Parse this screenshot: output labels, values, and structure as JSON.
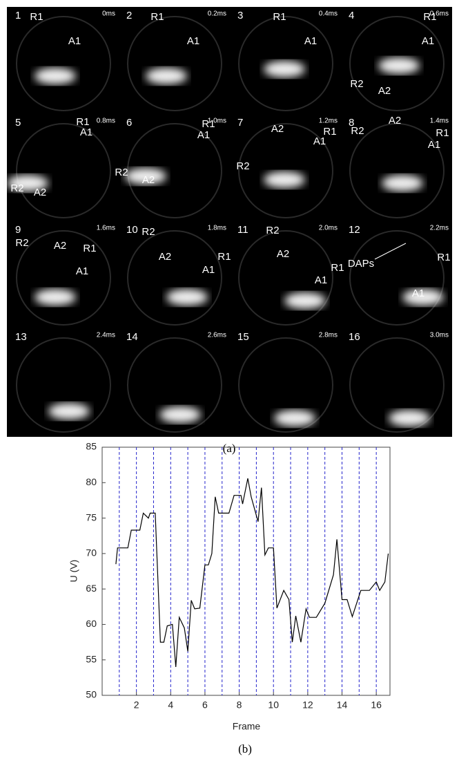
{
  "figure_a": {
    "caption": "(a)",
    "frames": [
      {
        "number": "1",
        "time": "0ms",
        "labels": [
          "R1",
          "A1"
        ]
      },
      {
        "number": "2",
        "time": "0.2ms",
        "labels": [
          "R1",
          "A1"
        ]
      },
      {
        "number": "3",
        "time": "0.4ms",
        "labels": [
          "R1",
          "A1"
        ]
      },
      {
        "number": "4",
        "time": "0.6ms",
        "labels": [
          "R1",
          "A1",
          "R2",
          "A2"
        ]
      },
      {
        "number": "5",
        "time": "0.8ms",
        "labels": [
          "R1",
          "A1",
          "R2",
          "A2"
        ]
      },
      {
        "number": "6",
        "time": "1.0ms",
        "labels": [
          "R1",
          "A1",
          "R2",
          "A2"
        ]
      },
      {
        "number": "7",
        "time": "1.2ms",
        "labels": [
          "R1",
          "A2",
          "A1",
          "R2"
        ]
      },
      {
        "number": "8",
        "time": "1.4ms",
        "labels": [
          "R1",
          "A2",
          "R2",
          "A1"
        ]
      },
      {
        "number": "9",
        "time": "1.6ms",
        "labels": [
          "R2",
          "A2",
          "R1",
          "A1"
        ]
      },
      {
        "number": "10",
        "time": "1.8ms",
        "labels": [
          "R2",
          "A2",
          "R1",
          "A1"
        ]
      },
      {
        "number": "11",
        "time": "2.0ms",
        "labels": [
          "R2",
          "A2",
          "R1",
          "A1"
        ]
      },
      {
        "number": "12",
        "time": "2.2ms",
        "labels": [
          "DAPs",
          "R1",
          "A1"
        ]
      },
      {
        "number": "13",
        "time": "2.4ms",
        "labels": []
      },
      {
        "number": "14",
        "time": "2.6ms",
        "labels": []
      },
      {
        "number": "15",
        "time": "2.8ms",
        "labels": []
      },
      {
        "number": "16",
        "time": "3.0ms",
        "labels": []
      }
    ]
  },
  "figure_b_caption": "(b)",
  "chart_data": {
    "type": "line",
    "x_label": "Frame",
    "y_label": "U (V)",
    "x": [
      0.8,
      0.9,
      1.5,
      1.7,
      2.2,
      2.4,
      2.7,
      2.8,
      3.1,
      3.4,
      3.6,
      3.8,
      4.1,
      4.3,
      4.5,
      4.8,
      5.0,
      5.2,
      5.4,
      5.7,
      6.0,
      6.2,
      6.4,
      6.6,
      6.8,
      7.4,
      7.7,
      8.1,
      8.2,
      8.5,
      8.7,
      9.1,
      9.3,
      9.5,
      9.7,
      10.0,
      10.2,
      10.6,
      10.9,
      11.1,
      11.3,
      11.6,
      11.9,
      12.1,
      12.5,
      13.0,
      13.5,
      13.7,
      14.0,
      14.3,
      14.6,
      15.1,
      15.6,
      16.0,
      16.2,
      16.5,
      16.7
    ],
    "series": [
      {
        "color": "#000000",
        "values": [
          68.5,
          70.8,
          70.8,
          73.3,
          73.3,
          75.7,
          75,
          75.7,
          75.7,
          57.5,
          57.5,
          59.8,
          60,
          54,
          61,
          59.5,
          56.2,
          63.4,
          62.2,
          62.3,
          68.4,
          68.4,
          70,
          78,
          75.7,
          75.7,
          78.2,
          78.2,
          77,
          80.6,
          78,
          74.5,
          79.3,
          69.8,
          70.8,
          70.8,
          62.3,
          64.8,
          63.5,
          57.5,
          61.2,
          57.5,
          62.2,
          61,
          61,
          63,
          67,
          72,
          63.5,
          63.5,
          61.1,
          64.8,
          64.8,
          66,
          64.8,
          66,
          70
        ]
      }
    ],
    "xlim": [
      0,
      16.8
    ],
    "ylim": [
      50,
      85
    ],
    "xticks": [
      2,
      4,
      6,
      8,
      10,
      12,
      14,
      16
    ],
    "yticks": [
      50,
      55,
      60,
      65,
      70,
      75,
      80,
      85
    ],
    "frame_markers": [
      1,
      2,
      3,
      4,
      5,
      6,
      7,
      8,
      9,
      10,
      11,
      12,
      13,
      14,
      15,
      16
    ],
    "frame_marker_color": "#2222cc"
  }
}
